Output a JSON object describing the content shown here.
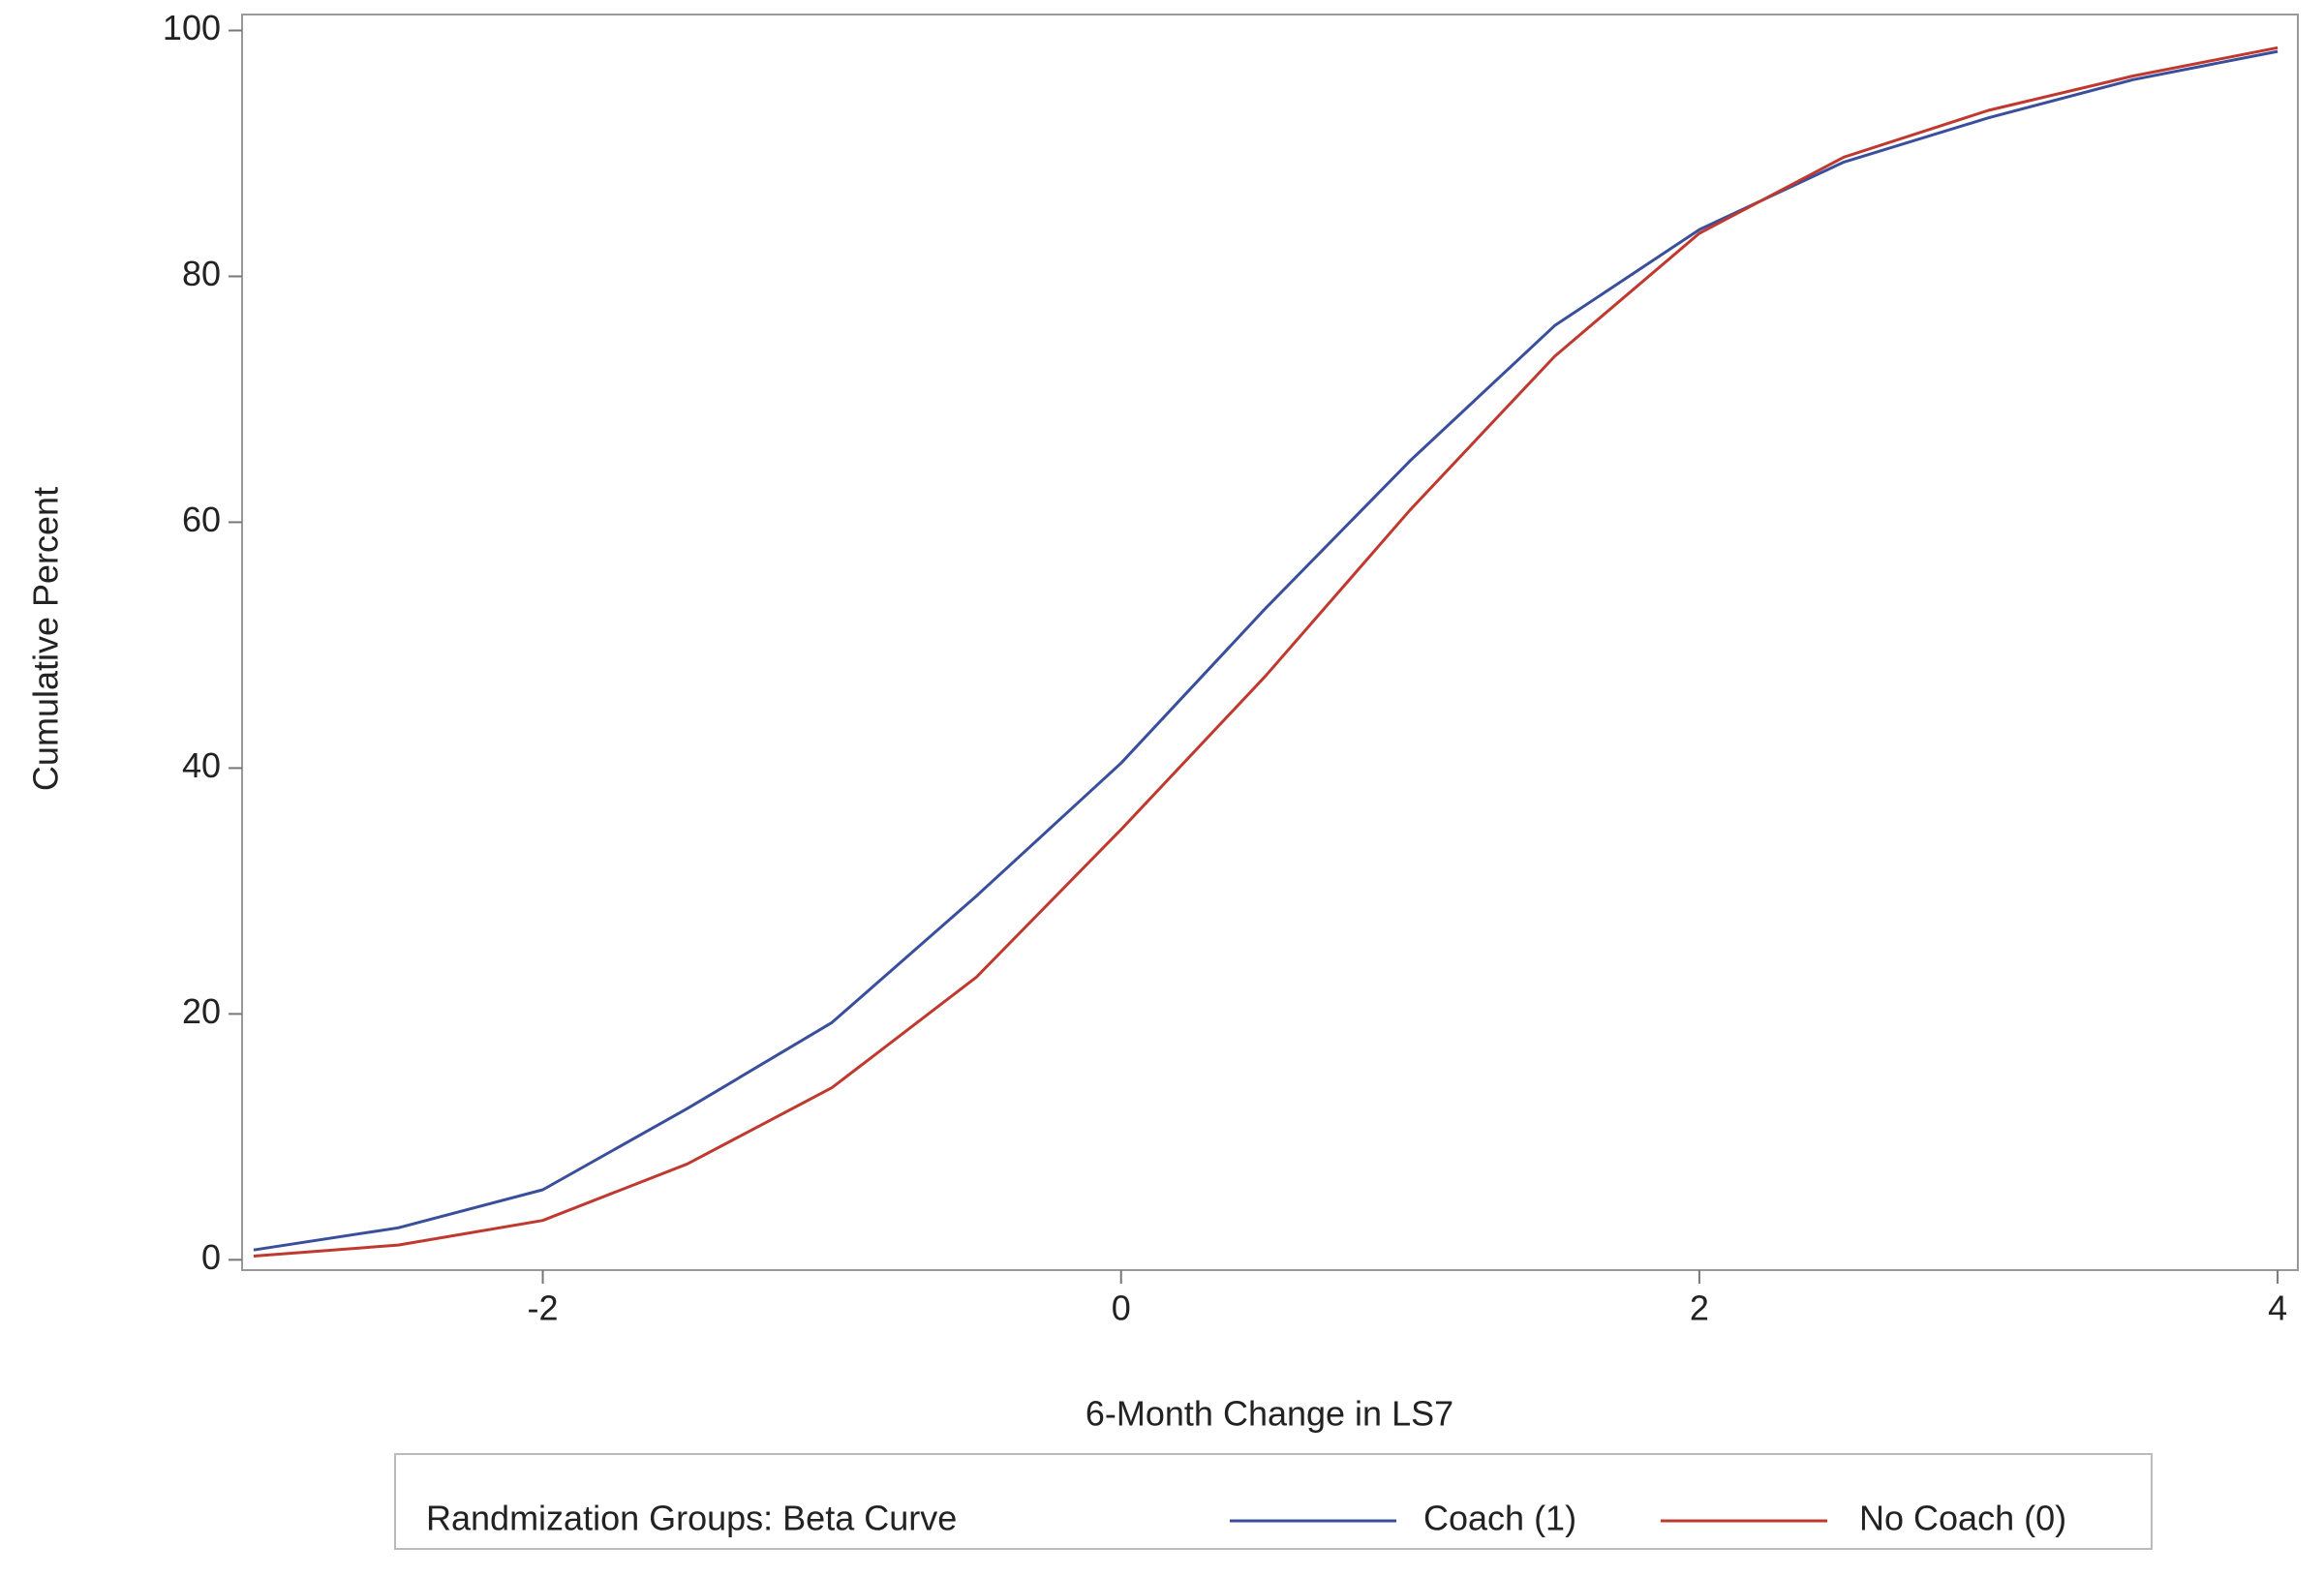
{
  "chart_data": {
    "type": "line",
    "x_label": "6-Month Change in LS7",
    "y_label": "Cumulative Percent",
    "x": [
      -3,
      -2.5,
      -2,
      -1.5,
      -1,
      -0.5,
      0,
      0.5,
      1,
      1.5,
      2,
      2.5,
      3,
      3.5,
      4
    ],
    "series": [
      {
        "name": "Coach (1)",
        "color": "#3a4f9c",
        "values": [
          0.8,
          2.6,
          5.7,
          12.3,
          19.3,
          29.6,
          40.4,
          53,
          65,
          76,
          83.8,
          89.3,
          92.9,
          96,
          98.3
        ]
      },
      {
        "name": "No Coach (0)",
        "color": "#c0392f",
        "values": [
          0.3,
          1.2,
          3.2,
          7.8,
          14,
          23,
          35,
          47.5,
          61,
          73.5,
          83.5,
          89.7,
          93.5,
          96.3,
          98.6
        ]
      }
    ],
    "legend_title": "Randmization Groups: Beta Curve",
    "xlim": [
      -3.04,
      4.07
    ],
    "ylim": [
      -0.84,
      101.3
    ],
    "xticks": [
      -2,
      0,
      2,
      4
    ],
    "yticks": [
      0,
      20,
      40,
      60,
      80,
      100
    ],
    "legend": "bottom"
  }
}
